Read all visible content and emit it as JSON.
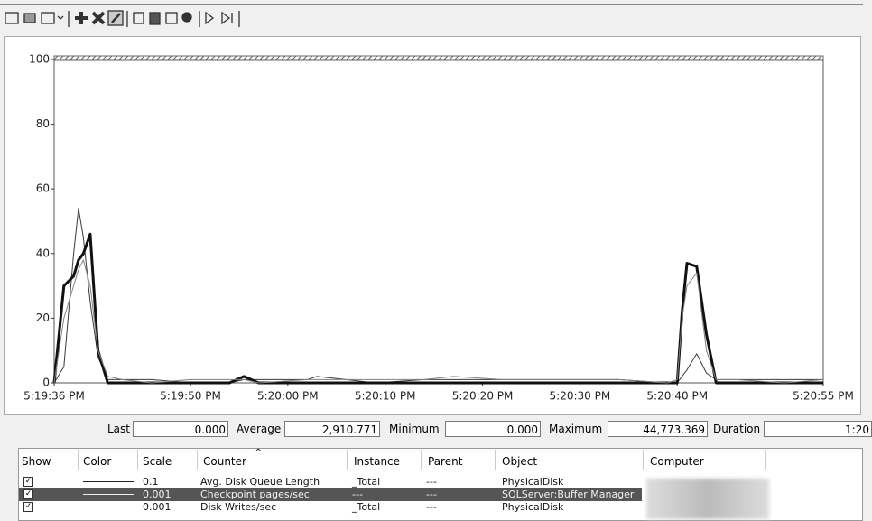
{
  "chart_data": {
    "type": "line",
    "xlim": [
      0,
      79
    ],
    "xticks": [
      {
        "value": 0,
        "label": "5:19:36 PM"
      },
      {
        "value": 14,
        "label": "5:19:50 PM"
      },
      {
        "value": 24,
        "label": "5:20:00 PM"
      },
      {
        "value": 34,
        "label": "5:20:10 PM"
      },
      {
        "value": 44,
        "label": "5:20:20 PM"
      },
      {
        "value": 54,
        "label": "5:20:30 PM"
      },
      {
        "value": 64,
        "label": "5:20:40 PM"
      },
      {
        "value": 79,
        "label": "5:20:55 PM"
      }
    ],
    "ylim": [
      0,
      100
    ],
    "yticks": [
      0,
      20,
      40,
      60,
      80,
      100
    ],
    "x": [
      0,
      1,
      2,
      2.5,
      3,
      3.7,
      4.5,
      5.5,
      7,
      10,
      14,
      18,
      19.5,
      21,
      26,
      27,
      33,
      38,
      41,
      46,
      52,
      58,
      63,
      64,
      64.5,
      65,
      66,
      67,
      68,
      70,
      75,
      79
    ],
    "series": [
      {
        "color": "#3a3a3a",
        "line_width": 1,
        "values": [
          0,
          5,
          40,
          54,
          45,
          25,
          8,
          1,
          1,
          1,
          0,
          0,
          1,
          1,
          1,
          2,
          0,
          1,
          1,
          1,
          1,
          1,
          0,
          0,
          2,
          4,
          9,
          3,
          1,
          1,
          1,
          1
        ]
      },
      {
        "color": "#111111",
        "line_width": 3,
        "values": [
          0,
          30,
          33,
          38,
          40,
          46,
          10,
          0,
          0,
          0,
          0,
          0,
          2,
          0,
          0,
          0,
          0,
          0,
          0,
          0,
          0,
          0,
          0,
          0,
          22,
          37,
          36,
          15,
          0,
          0,
          0,
          0
        ]
      },
      {
        "color": "#808080",
        "line_width": 1,
        "values": [
          0,
          20,
          30,
          35,
          38,
          30,
          10,
          2,
          1,
          0,
          1,
          1,
          1,
          0,
          1,
          1,
          1,
          1,
          2,
          1,
          1,
          1,
          0,
          1,
          20,
          30,
          34,
          10,
          1,
          1,
          0,
          1
        ]
      }
    ]
  },
  "stats": {
    "last_label": "Last",
    "last": "0.000",
    "average_label": "Average",
    "average": "2,910.771",
    "minimum_label": "Minimum",
    "minimum": "0.000",
    "maximum_label": "Maximum",
    "maximum": "44,773.369",
    "duration_label": "Duration",
    "duration": "1:20"
  },
  "table": {
    "headers": [
      "Show",
      "Color",
      "Scale",
      "Counter",
      "Instance",
      "Parent",
      "Object",
      "Computer"
    ],
    "rows": [
      {
        "scale": "0.1",
        "counter": "Avg. Disk Queue Length",
        "instance": "_Total",
        "parent": "---",
        "object": "PhysicalDisk"
      },
      {
        "scale": "0.001",
        "counter": "Checkpoint pages/sec",
        "instance": "---",
        "parent": "---",
        "object": "SQLServer:Buffer Manager"
      },
      {
        "scale": "0.001",
        "counter": "Disk Writes/sec",
        "instance": "_Total",
        "parent": "---",
        "object": "PhysicalDisk"
      }
    ]
  }
}
